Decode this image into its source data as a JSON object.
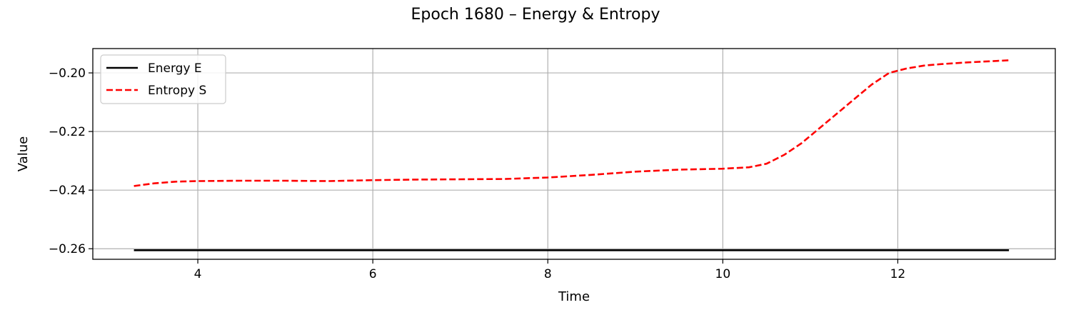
{
  "chart_data": {
    "type": "line",
    "title": "Epoch 1680 – Energy & Entropy",
    "xlabel": "Time",
    "ylabel": "Value",
    "xlim": [
      2.8,
      13.8
    ],
    "ylim": [
      -0.2636,
      -0.1917
    ],
    "xticks": [
      4,
      6,
      8,
      10,
      12
    ],
    "yticks": [
      -0.26,
      -0.24,
      -0.22,
      -0.2
    ],
    "xtick_labels": [
      "4",
      "6",
      "8",
      "10",
      "12"
    ],
    "ytick_labels": [
      "−0.26",
      "−0.24",
      "−0.22",
      "−0.20"
    ],
    "grid": true,
    "legend_position": "top-left",
    "series": [
      {
        "name": "Energy E",
        "color": "#000000",
        "style": "solid",
        "x": [
          3.27,
          13.27
        ],
        "y": [
          -0.2605,
          -0.2605
        ]
      },
      {
        "name": "Entropy S",
        "color": "#ff0000",
        "style": "dashed",
        "x": [
          3.27,
          3.5,
          3.75,
          4.0,
          4.5,
          5.0,
          5.5,
          6.0,
          6.5,
          7.0,
          7.5,
          8.0,
          8.5,
          9.0,
          9.5,
          10.0,
          10.3,
          10.5,
          10.7,
          10.9,
          11.1,
          11.3,
          11.5,
          11.7,
          11.9,
          12.1,
          12.3,
          12.5,
          12.8,
          13.0,
          13.27
        ],
        "y": [
          -0.2386,
          -0.2377,
          -0.2371,
          -0.2369,
          -0.2368,
          -0.2368,
          -0.2369,
          -0.2366,
          -0.2364,
          -0.2363,
          -0.2362,
          -0.2357,
          -0.2348,
          -0.2337,
          -0.233,
          -0.2327,
          -0.2322,
          -0.231,
          -0.228,
          -0.224,
          -0.219,
          -0.214,
          -0.209,
          -0.204,
          -0.2,
          -0.1985,
          -0.1975,
          -0.197,
          -0.1964,
          -0.1961,
          -0.1957
        ]
      }
    ]
  }
}
